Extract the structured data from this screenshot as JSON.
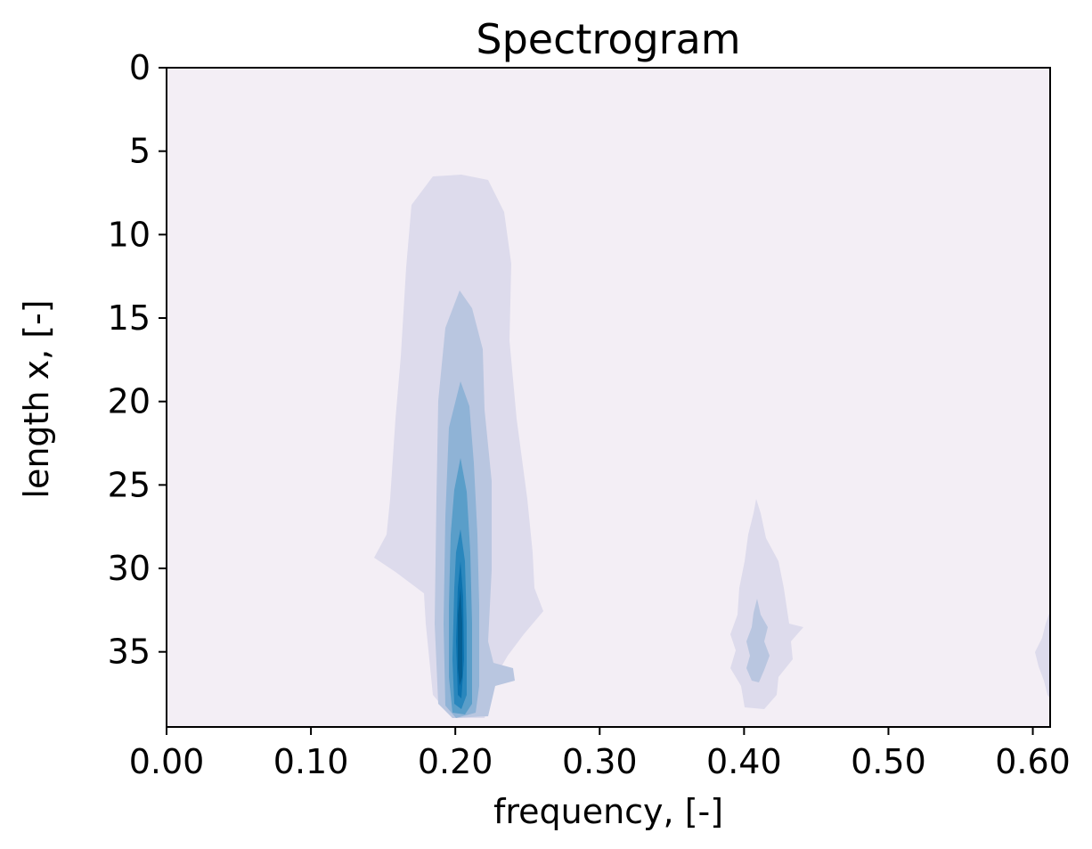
{
  "chart_data": {
    "type": "heatmap",
    "subtype": "filled-contour",
    "title": "Spectrogram",
    "xlabel": "frequency, [-]",
    "ylabel": "length x, [-]",
    "xlim": [
      0.0,
      0.612
    ],
    "ylim": [
      39.5,
      0
    ],
    "y_inverted": true,
    "x_ticks": [
      "0.00",
      "0.10",
      "0.20",
      "0.30",
      "0.40",
      "0.50",
      "0.60"
    ],
    "x_tick_values": [
      0.0,
      0.1,
      0.2,
      0.3,
      0.4,
      0.5,
      0.6
    ],
    "y_ticks": [
      "0",
      "5",
      "10",
      "15",
      "20",
      "25",
      "30",
      "35"
    ],
    "y_tick_values": [
      0,
      5,
      10,
      15,
      20,
      25,
      30,
      35
    ],
    "grid": false,
    "colormap": [
      "#f3eef5",
      "#dddbec",
      "#b9c6e0",
      "#8fb3d6",
      "#5a9ec9",
      "#2a87bd",
      "#0c72ae",
      "#045f94",
      "#034e7b"
    ],
    "peaks": [
      {
        "frequency": 0.205,
        "onset_x": 6.5,
        "peak_x": 36
      },
      {
        "frequency": 0.41,
        "onset_x": 26.2,
        "peak_x": 35
      },
      {
        "frequency": 0.615,
        "onset_x": 33,
        "peak_x": 35.5
      }
    ]
  }
}
